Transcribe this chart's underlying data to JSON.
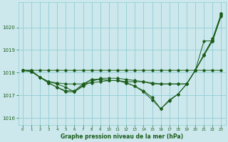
{
  "background_color": "#cce8ec",
  "grid_color": "#8ecdd4",
  "line_color": "#1a5c1a",
  "xlabel": "Graphe pression niveau de la mer (hPa)",
  "ylim": [
    1015.7,
    1021.1
  ],
  "xlim": [
    -0.5,
    23.5
  ],
  "yticks": [
    1016,
    1017,
    1018,
    1019,
    1020
  ],
  "xticks": [
    0,
    1,
    2,
    3,
    4,
    5,
    6,
    7,
    8,
    9,
    10,
    11,
    12,
    13,
    14,
    15,
    16,
    17,
    18,
    19,
    20,
    21,
    22,
    23
  ],
  "series": [
    [
      1018.1,
      1018.1,
      1018.1,
      1018.1,
      1018.1,
      1018.1,
      1018.1,
      1018.1,
      1018.1,
      1018.1,
      1018.1,
      1018.1,
      1018.1,
      1018.1,
      1018.1,
      1018.1,
      1018.1,
      1018.1,
      1018.1,
      1018.1,
      1018.1,
      1019.4,
      1019.4,
      1020.5
    ],
    [
      1018.1,
      1018.05,
      1017.8,
      1017.6,
      1017.5,
      1017.35,
      1017.15,
      1017.4,
      1017.6,
      1017.75,
      1017.75,
      1017.75,
      1017.7,
      1017.65,
      1017.6,
      1017.5,
      1017.5,
      1017.5,
      1017.5,
      1017.5,
      1018.1,
      1018.75,
      1019.4,
      1020.55
    ],
    [
      1018.1,
      1018.05,
      1017.8,
      1017.55,
      1017.35,
      1017.15,
      1017.15,
      1017.45,
      1017.7,
      1017.7,
      1017.65,
      1017.65,
      1017.55,
      1017.4,
      1017.15,
      1016.8,
      1016.4,
      1016.75,
      1017.05,
      1017.5,
      1018.1,
      1018.8,
      1019.5,
      1020.6
    ],
    [
      1018.1,
      1018.05,
      1017.8,
      1017.55,
      1017.35,
      1017.2,
      1017.2,
      1017.5,
      1017.7,
      1017.7,
      1017.65,
      1017.65,
      1017.55,
      1017.4,
      1017.2,
      1016.9,
      1016.4,
      1016.8,
      1017.05,
      1017.5,
      1018.1,
      1018.8,
      1019.45,
      1020.6
    ],
    [
      1018.1,
      1018.1,
      1017.8,
      1017.6,
      1017.55,
      1017.5,
      1017.5,
      1017.5,
      1017.55,
      1017.6,
      1017.65,
      1017.65,
      1017.6,
      1017.6,
      1017.6,
      1017.55,
      1017.5,
      1017.5,
      1017.5,
      1017.5,
      1018.1,
      1018.1,
      1018.1,
      1018.1
    ]
  ]
}
